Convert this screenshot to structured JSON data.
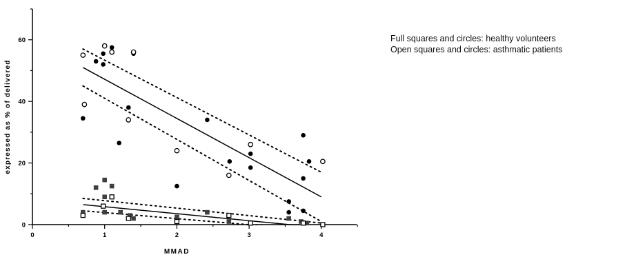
{
  "chart_data": {
    "type": "scatter",
    "xlabel": "MMAD",
    "ylabel": "expressed as % of delivered",
    "xlim": [
      0,
      4.5
    ],
    "ylim": [
      0,
      70
    ],
    "x_ticks": [
      "0",
      "1",
      "2",
      "3",
      "4"
    ],
    "y_ticks": [
      "0",
      "20",
      "40",
      "60"
    ],
    "grid": false,
    "legend_position": "right",
    "series": [
      {
        "marker": "filled-circle",
        "points": [
          [
            0.7,
            34.5
          ],
          [
            0.88,
            53
          ],
          [
            0.98,
            52
          ],
          [
            0.98,
            55.5
          ],
          [
            1.1,
            57.5
          ],
          [
            1.2,
            26.5
          ],
          [
            1.33,
            38
          ],
          [
            1.4,
            55.5
          ],
          [
            2.0,
            12.5
          ],
          [
            2.42,
            34
          ],
          [
            2.73,
            20.5
          ],
          [
            3.02,
            23
          ],
          [
            3.02,
            18.5
          ],
          [
            3.55,
            4
          ],
          [
            3.55,
            7.5
          ],
          [
            3.75,
            29
          ],
          [
            3.75,
            15
          ],
          [
            3.75,
            4.5
          ],
          [
            3.83,
            20.5
          ]
        ]
      },
      {
        "marker": "open-circle",
        "points": [
          [
            0.7,
            55
          ],
          [
            0.72,
            39
          ],
          [
            1.0,
            58
          ],
          [
            1.1,
            56
          ],
          [
            1.33,
            34
          ],
          [
            1.4,
            56
          ],
          [
            2.0,
            24
          ],
          [
            2.72,
            16
          ],
          [
            3.02,
            26
          ],
          [
            4.02,
            20.5
          ]
        ]
      },
      {
        "marker": "filled-square",
        "points": [
          [
            0.7,
            4
          ],
          [
            0.88,
            12
          ],
          [
            1.0,
            4
          ],
          [
            1.0,
            9
          ],
          [
            1.0,
            14.5
          ],
          [
            1.1,
            12.5
          ],
          [
            1.22,
            4
          ],
          [
            1.35,
            3
          ],
          [
            1.4,
            2
          ],
          [
            2.0,
            2.5
          ],
          [
            2.42,
            4
          ],
          [
            2.72,
            1
          ],
          [
            3.02,
            0.5
          ],
          [
            3.55,
            2
          ],
          [
            3.72,
            1
          ],
          [
            3.8,
            0.5
          ]
        ]
      },
      {
        "marker": "open-square",
        "points": [
          [
            0.7,
            3
          ],
          [
            0.98,
            6
          ],
          [
            1.1,
            9
          ],
          [
            1.33,
            2
          ],
          [
            2.0,
            1
          ],
          [
            2.72,
            3
          ],
          [
            3.02,
            0.5
          ],
          [
            3.75,
            0.5
          ],
          [
            4.02,
            0
          ]
        ]
      }
    ],
    "regression_lines": [
      {
        "fit": [
          [
            0.7,
            51
          ],
          [
            4.0,
            9
          ]
        ],
        "ci_upper": [
          [
            0.7,
            57
          ],
          [
            4.0,
            17
          ]
        ],
        "ci_lower": [
          [
            0.7,
            45
          ],
          [
            4.0,
            1
          ]
        ]
      },
      {
        "fit": [
          [
            0.7,
            6.5
          ],
          [
            4.0,
            -1
          ]
        ],
        "ci_upper": [
          [
            0.7,
            8.5
          ],
          [
            4.0,
            0.5
          ]
        ],
        "ci_lower": [
          [
            0.7,
            4.5
          ],
          [
            4.0,
            -2
          ]
        ]
      }
    ],
    "annotations": [
      "Full squares and circles: healthy volunteers",
      "Open squares and circles: asthmatic patients"
    ]
  }
}
